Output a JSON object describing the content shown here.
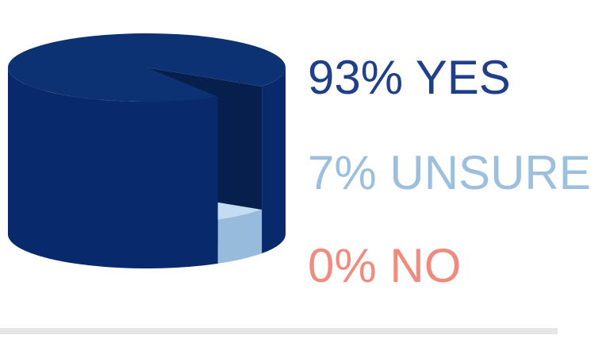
{
  "chart_data": {
    "type": "pie",
    "categories": [
      "YES",
      "UNSURE",
      "NO"
    ],
    "values": [
      93,
      7,
      0
    ],
    "value_labels": [
      "93%",
      "7%",
      "0%"
    ],
    "colors": [
      "#0c3273",
      "#9dc0de",
      "#f08b80"
    ],
    "label_colors": [
      "#1f3f8a",
      "#9bbfdc",
      "#f08b80"
    ]
  }
}
